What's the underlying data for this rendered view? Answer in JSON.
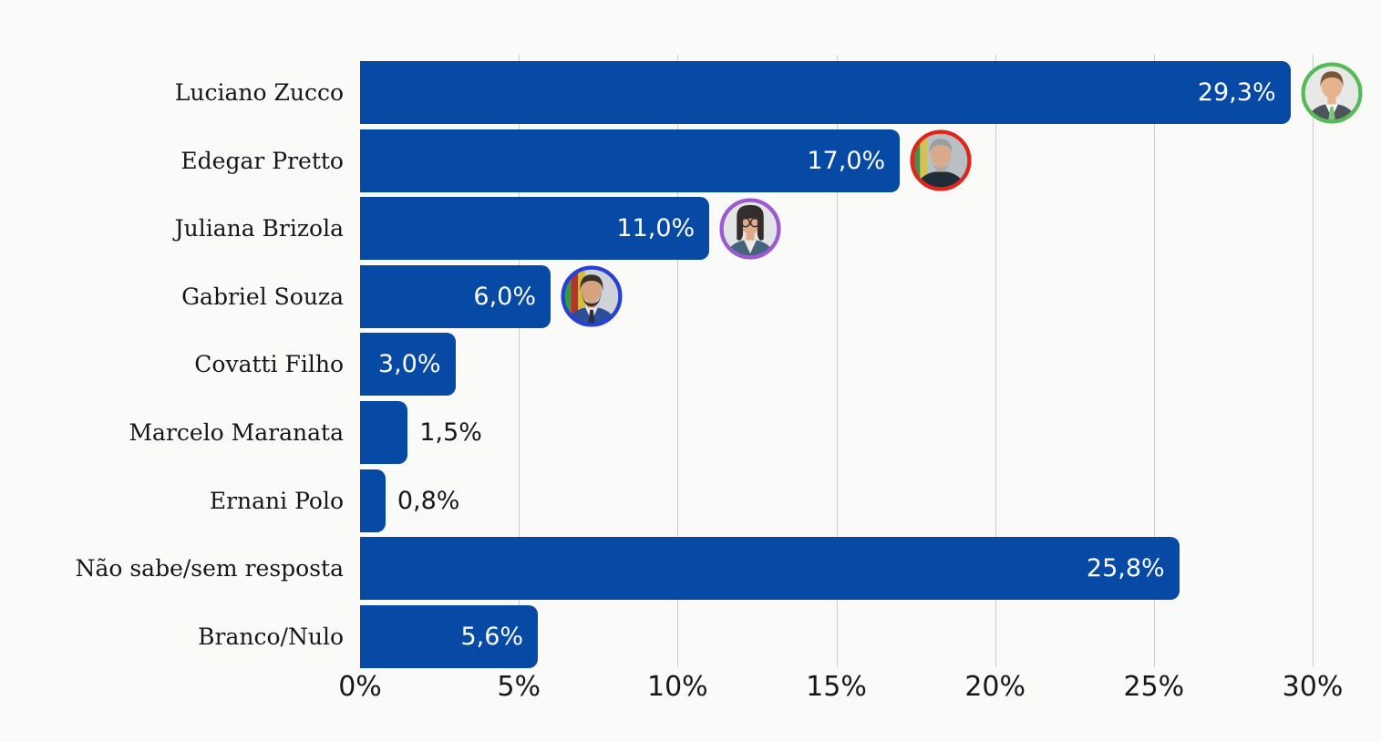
{
  "colors": {
    "background": "#fafaf8",
    "bar": "#064aa5",
    "grid": "#ccccca",
    "category_text": "#14171c",
    "axis_text": "#14171c",
    "value_inside_text": "#ffffff",
    "value_outside_text": "#14171c"
  },
  "chart_data": {
    "type": "bar",
    "orientation": "horizontal",
    "title": "",
    "xlabel": "",
    "ylabel": "",
    "categories": [
      "Luciano Zucco",
      "Edegar Pretto",
      "Juliana Brizola",
      "Gabriel Souza",
      "Covatti Filho",
      "Marcelo Maranata",
      "Ernani Polo",
      "Não sabe/sem resposta",
      "Branco/Nulo"
    ],
    "values": [
      29.3,
      17.0,
      11.0,
      6.0,
      3.0,
      1.5,
      0.8,
      25.8,
      5.6
    ],
    "value_labels": [
      "29,3%",
      "17,0%",
      "11,0%",
      "6,0%",
      "3,0%",
      "1,5%",
      "0,8%",
      "25,8%",
      "5,6%"
    ],
    "xlim": [
      0,
      30
    ],
    "x_ticks": [
      {
        "value": 0,
        "label": "0%"
      },
      {
        "value": 5,
        "label": "5%"
      },
      {
        "value": 10,
        "label": "10%"
      },
      {
        "value": 15,
        "label": "15%"
      },
      {
        "value": 20,
        "label": "20%"
      },
      {
        "value": 25,
        "label": "25%"
      },
      {
        "value": 30,
        "label": "30%"
      }
    ],
    "grid": "vertical-lines",
    "legend": "none",
    "avatars": [
      {
        "row": 0,
        "name": "luciano-zucco",
        "ring": "#57b957",
        "style": "male",
        "bg": "#e7e9e8",
        "hair": "#7a5636",
        "skin": "#e6b48c",
        "suit": "#4e545b",
        "shirt": "#ffffff",
        "tie": "#7ec57d",
        "beard": false,
        "glasses": false,
        "flag": []
      },
      {
        "row": 1,
        "name": "edegar-pretto",
        "ring": "#e0251b",
        "style": "male",
        "bg": "#b9c0c3",
        "hair": "#9c9fa0",
        "skin": "#d8a98a",
        "suit": "#1f2c3a",
        "shirt": "#1f2c3a",
        "tie": "",
        "beard": true,
        "beard_color": "#a8a9a7",
        "glasses": false,
        "flag": [
          "#4c8a46",
          "#d4c155"
        ]
      },
      {
        "row": 2,
        "name": "juliana-brizola",
        "ring": "#9c5ad1",
        "style": "female",
        "bg": "#e3e4e6",
        "hair": "#332d2e",
        "skin": "#e0ab8a",
        "suit": "#44647c",
        "shirt": "#efe9e2",
        "tie": "",
        "beard": false,
        "glasses": true,
        "flag": []
      },
      {
        "row": 3,
        "name": "gabriel-souza",
        "ring": "#2940d4",
        "style": "male",
        "bg": "#cdd3d8",
        "hair": "#38302b",
        "skin": "#d6a27f",
        "suit": "#2c4f97",
        "shirt": "#e9e6e0",
        "tie": "#27313d",
        "beard": true,
        "beard_color": "#38302b",
        "glasses": false,
        "flag": [
          "#2f9e41",
          "#b5342c",
          "#d8bd3a"
        ]
      }
    ]
  }
}
